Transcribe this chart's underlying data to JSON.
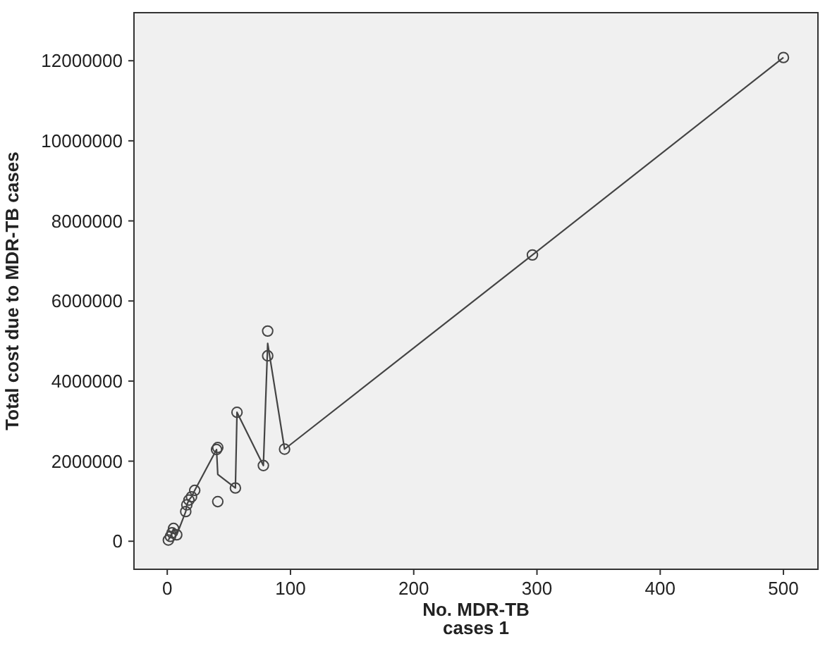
{
  "chart_data": {
    "type": "scatter",
    "xlabel": "No. MDR-TB\ncases 1",
    "ylabel": "Total cost due to MDR-TB cases",
    "xlim": [
      -27,
      528
    ],
    "ylim": [
      -700000,
      13200000
    ],
    "xticks": [
      0,
      100,
      200,
      300,
      400,
      500
    ],
    "yticks": [
      0,
      2000000,
      4000000,
      6000000,
      8000000,
      10000000,
      12000000
    ],
    "grid": false,
    "series": [
      {
        "color": "#444444",
        "marker": "circle",
        "x": [
          0.9,
          2.6,
          3.9,
          5.1,
          7.7,
          15,
          15.9,
          17.6,
          19.7,
          22.3,
          40,
          41,
          41,
          55.3,
          56.6,
          78,
          81.5,
          81.5,
          95.2,
          296.3,
          500
        ],
        "values": [
          30000,
          120000,
          210000,
          320000,
          160000,
          740000,
          910000,
          1030000,
          1110000,
          1270000,
          2290000,
          2340000,
          990000,
          1330000,
          3220000,
          1890000,
          5250000,
          4630000,
          2300000,
          7150000,
          12080000
        ]
      },
      {
        "type": "line",
        "color": "#444444",
        "marker": "none",
        "line_style": "solid",
        "x": [
          0.9,
          2.6,
          3.9,
          5.1,
          7.7,
          15,
          15.9,
          17.6,
          19.7,
          22.3,
          40,
          41,
          55.3,
          56.6,
          78,
          81.5,
          95.2,
          296.3,
          500
        ],
        "values": [
          30000,
          120000,
          210000,
          320000,
          160000,
          740000,
          910000,
          1030000,
          1110000,
          1270000,
          2290000,
          1670000,
          1330000,
          3220000,
          1890000,
          4940000,
          2300000,
          7150000,
          12080000
        ]
      }
    ]
  }
}
